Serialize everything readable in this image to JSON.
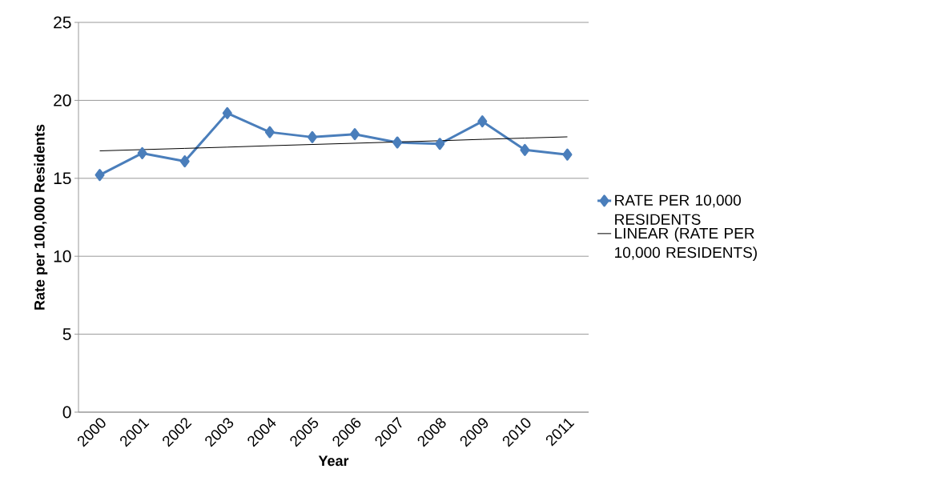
{
  "chart_data": {
    "type": "line",
    "xlabel": "Year",
    "ylabel": "Rate per 100,000 Residents",
    "categories": [
      "2000",
      "2001",
      "2002",
      "2003",
      "2004",
      "2005",
      "2006",
      "2007",
      "2008",
      "2009",
      "2010",
      "2011"
    ],
    "series": [
      {
        "name": "RATE PER 10,000 RESIDENTS",
        "color": "#4a7ebb",
        "marker": "diamond",
        "values": [
          15.21,
          16.61,
          16.09,
          19.18,
          17.96,
          17.64,
          17.83,
          17.3,
          17.21,
          18.65,
          16.82,
          16.52
        ]
      },
      {
        "name": "LINEAR (RATE PER 10,000 RESIDENTS)",
        "color": "#000000",
        "marker": "none",
        "values": [
          16.76,
          16.84,
          16.92,
          17.0,
          17.09,
          17.17,
          17.25,
          17.33,
          17.41,
          17.5,
          17.58,
          17.66
        ]
      }
    ],
    "ylim": [
      0,
      25
    ],
    "yticks": [
      0,
      5,
      10,
      15,
      20,
      25
    ],
    "grid": "y",
    "legend": "right",
    "line_style": "solid"
  }
}
